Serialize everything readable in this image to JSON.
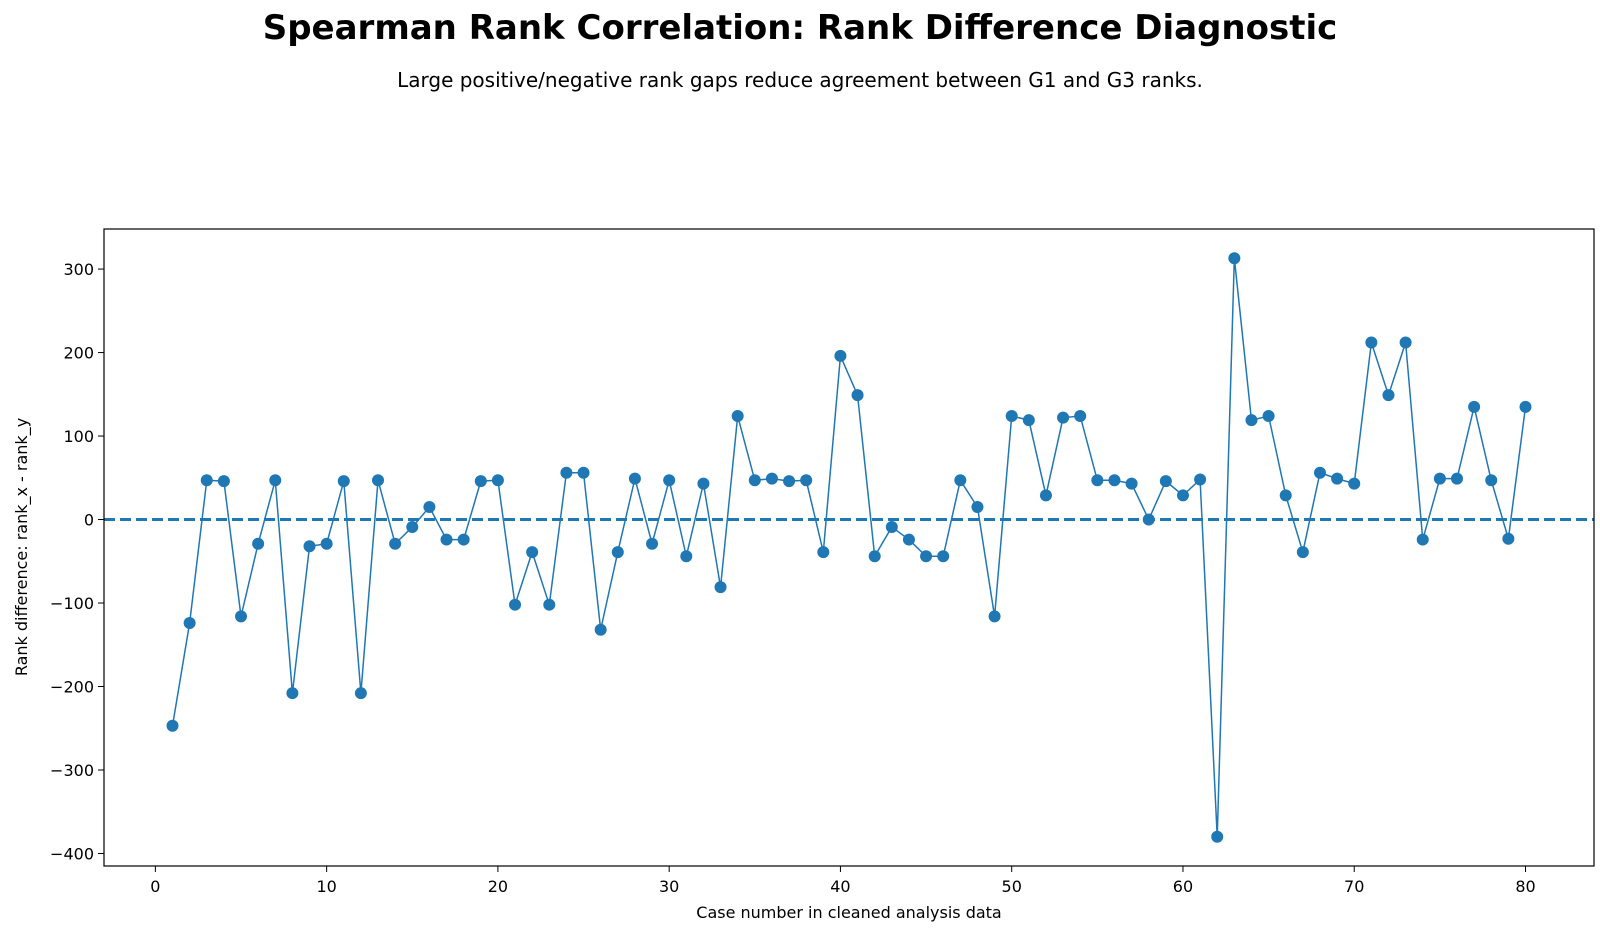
{
  "chart_data": {
    "type": "line",
    "title": "Spearman Rank Correlation: Rank Difference Diagnostic",
    "subtitle": "Large positive/negative rank gaps reduce agreement between G1 and G3 ranks.",
    "xlabel": "Case number in cleaned analysis data",
    "ylabel": "Rank difference: rank_x - rank_y",
    "xlim": [
      -3,
      84
    ],
    "ylim": [
      -415,
      348
    ],
    "xticks": [
      0,
      10,
      20,
      30,
      40,
      50,
      60,
      70,
      80
    ],
    "yticks": [
      -400,
      -300,
      -200,
      -100,
      0,
      100,
      200,
      300
    ],
    "xtick_labels": [
      "0",
      "10",
      "20",
      "30",
      "40",
      "50",
      "60",
      "70",
      "80"
    ],
    "ytick_labels": [
      "−400",
      "−300",
      "−200",
      "−100",
      "0",
      "100",
      "200",
      "300"
    ],
    "reference_line": {
      "y": 0,
      "style": "dashed"
    },
    "grid": false,
    "color": "#1f77b4",
    "series": [
      {
        "x": [
          1,
          2,
          3,
          4,
          5,
          6,
          7,
          8,
          9,
          10,
          11,
          12,
          13,
          14,
          15,
          16,
          17,
          18,
          19,
          20,
          21,
          22,
          23,
          24,
          25,
          26,
          27,
          28,
          29,
          30,
          31,
          32,
          33,
          34,
          35,
          36,
          37,
          38,
          39,
          40,
          41,
          42,
          43,
          44,
          45,
          46,
          47,
          48,
          49,
          50,
          51,
          52,
          53,
          54,
          55,
          56,
          57,
          58,
          59,
          60,
          61,
          62,
          63,
          64,
          65,
          66,
          67,
          68,
          69,
          70,
          71,
          72,
          73,
          74,
          75,
          76,
          77,
          78,
          79,
          80
        ],
        "values": [
          -247,
          -124,
          47,
          46,
          -116,
          -29,
          47,
          -208,
          -32,
          -29,
          46,
          -208,
          47,
          -29,
          -9,
          15,
          -24,
          -24,
          46,
          47,
          -102,
          -39,
          -102,
          56,
          56,
          -132,
          -39,
          49,
          -29,
          47,
          -44,
          43,
          -81,
          124,
          47,
          49,
          46,
          47,
          -39,
          196,
          149,
          -44,
          -9,
          -24,
          -44,
          -44,
          47,
          15,
          -116,
          124,
          119,
          29,
          122,
          124,
          47,
          47,
          43,
          0,
          46,
          29,
          48,
          -380,
          313,
          119,
          124,
          29,
          -39,
          56,
          49,
          43,
          212,
          149,
          212,
          -24,
          49,
          49,
          135,
          47,
          -23,
          135
        ]
      }
    ]
  }
}
